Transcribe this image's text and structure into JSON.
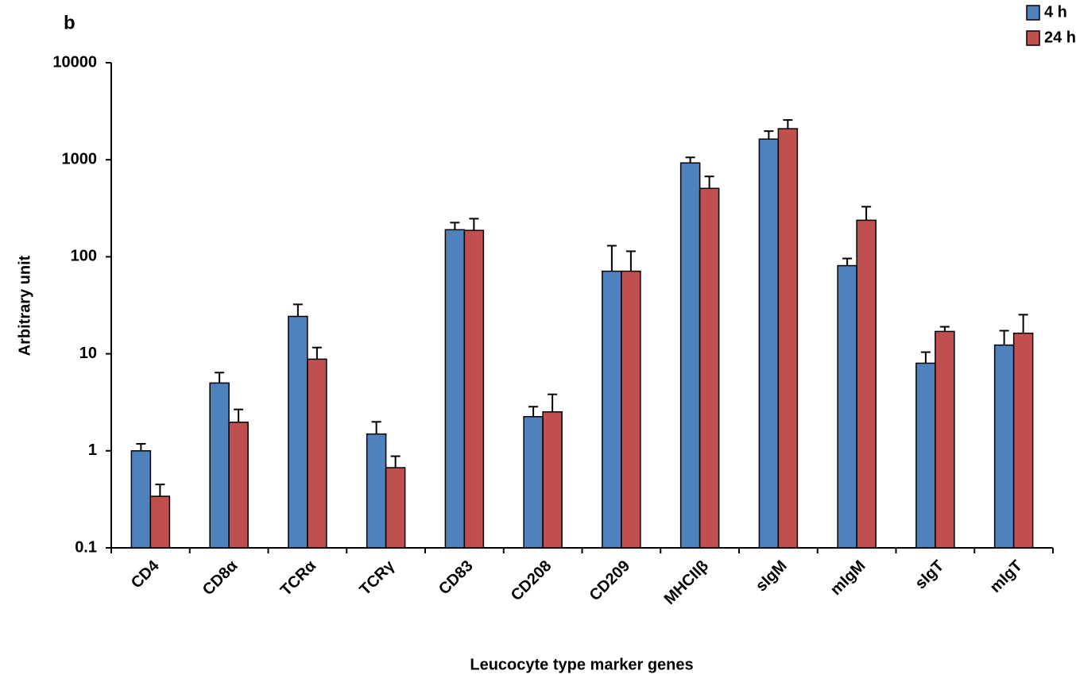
{
  "chart_data": {
    "type": "bar",
    "panel_label": "b",
    "x_label": "Leucocyte type marker genes",
    "y_label": "Arbitrary unit",
    "categories": [
      "CD4",
      "CD8α",
      "TCRα",
      "TCRγ",
      "CD83",
      "CD208",
      "CD209",
      "MHCIIβ",
      "sIgM",
      "mIgM",
      "sIgT",
      "mIgT"
    ],
    "series": [
      {
        "name": "4 h",
        "color": "#4f81bd",
        "values": [
          1.0,
          5.0,
          24.3,
          1.49,
          190,
          2.25,
          71,
          927,
          1633,
          81,
          8.0,
          12.3
        ],
        "errors": [
          0.18,
          1.4,
          8,
          0.5,
          35,
          0.6,
          59,
          130,
          340,
          15,
          2.4,
          5
        ]
      },
      {
        "name": "24 h",
        "color": "#c0504d",
        "values": [
          0.34,
          1.97,
          8.8,
          0.67,
          187,
          2.52,
          71,
          507,
          2089,
          238,
          17,
          16.3
        ],
        "errors": [
          0.11,
          0.7,
          2.8,
          0.21,
          60,
          1.3,
          43,
          166,
          480,
          90,
          2,
          9
        ]
      }
    ],
    "log_y": true,
    "ylim": [
      0.1,
      10000
    ],
    "yticks": [
      0.1,
      1,
      10,
      100,
      1000,
      10000
    ],
    "legend": "top-right"
  }
}
